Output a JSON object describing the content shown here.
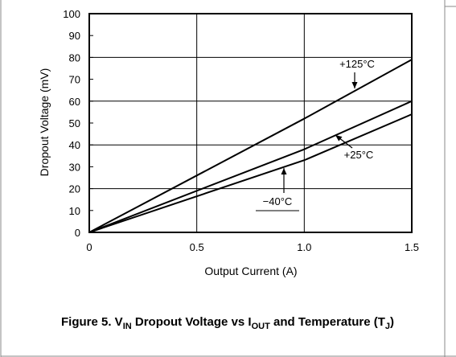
{
  "chart_data": {
    "type": "line",
    "xlabel": "Output Current (A)",
    "ylabel": "Dropout Voltage (mV)",
    "xlim": [
      0,
      1.5
    ],
    "ylim": [
      0,
      100
    ],
    "x_ticks": [
      "0",
      "0.5",
      "1.0",
      "1.5"
    ],
    "y_ticks": [
      "0",
      "10",
      "20",
      "30",
      "40",
      "50",
      "60",
      "70",
      "80",
      "90",
      "100"
    ],
    "grid": true,
    "series": [
      {
        "name": "+125°C",
        "x": [
          0,
          1.0,
          1.5
        ],
        "y": [
          0,
          52,
          79
        ]
      },
      {
        "name": "+25°C",
        "x": [
          0,
          1.0,
          1.5
        ],
        "y": [
          0,
          38,
          60
        ]
      },
      {
        "name": "−40°C",
        "x": [
          0,
          1.0,
          1.5
        ],
        "y": [
          0,
          33,
          54
        ]
      }
    ]
  },
  "caption": {
    "prefix": "Figure 5. V",
    "sub1": "IN",
    "mid1": " Dropout Voltage vs I",
    "sub2": "OUT",
    "mid2": " and Temperature (T",
    "sub3": "J",
    "suffix": ")"
  }
}
